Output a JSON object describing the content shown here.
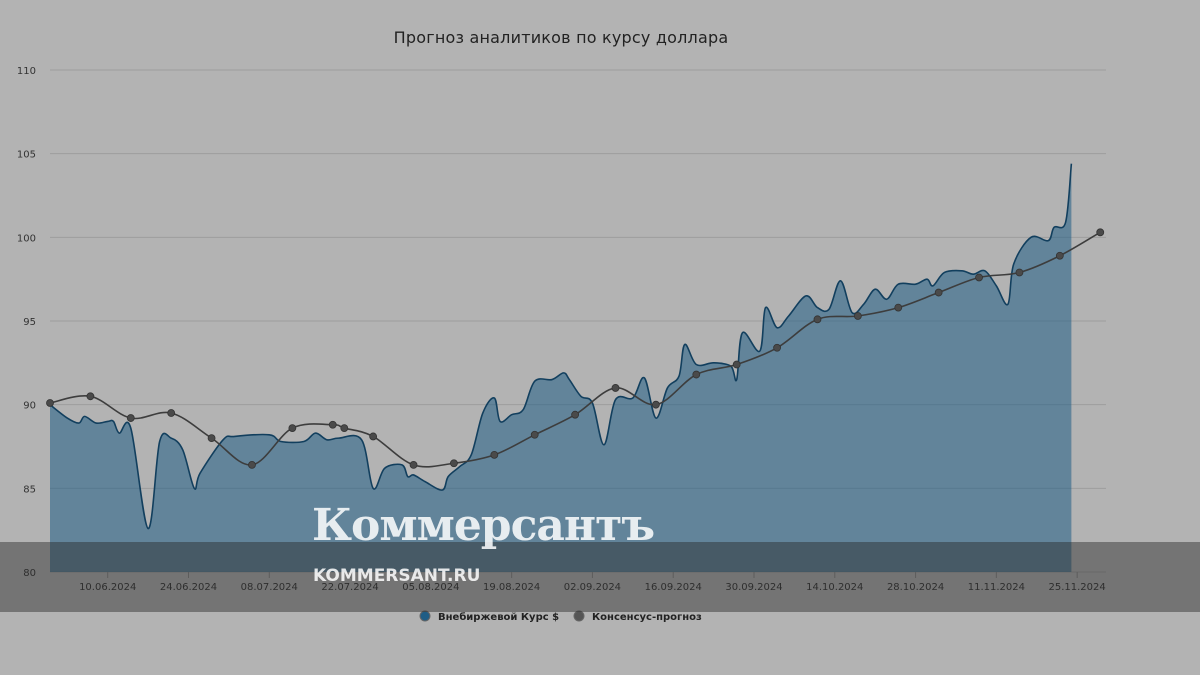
{
  "chart_data": {
    "type": "area",
    "title": "Прогноз аналитиков по курсу доллара",
    "xlabel": "",
    "ylabel": "",
    "ylim": [
      80,
      110
    ],
    "yticks": [
      "80",
      "85",
      "90",
      "95",
      "100",
      "105",
      "110"
    ],
    "x_tick_labels": [
      "10.06.2024",
      "24.06.2024",
      "08.07.2024",
      "22.07.2024",
      "05.08.2024",
      "19.08.2024",
      "02.09.2024",
      "16.09.2024",
      "30.09.2024",
      "14.10.2024",
      "28.10.2024",
      "11.11.2024",
      "25.11.2024"
    ],
    "grid": true,
    "legend_position": "bottom",
    "series": [
      {
        "name": "Внебиржевой Курс $",
        "type": "area",
        "color": "#1f5d85",
        "points": [
          [
            "2024-05-31",
            90.0
          ],
          [
            "2024-06-03",
            89.2
          ],
          [
            "2024-06-05",
            88.9
          ],
          [
            "2024-06-06",
            89.3
          ],
          [
            "2024-06-08",
            88.9
          ],
          [
            "2024-06-10",
            89.0
          ],
          [
            "2024-06-11",
            89.0
          ],
          [
            "2024-06-12",
            88.3
          ],
          [
            "2024-06-14",
            88.6
          ],
          [
            "2024-06-17",
            82.6
          ],
          [
            "2024-06-19",
            87.8
          ],
          [
            "2024-06-21",
            88.0
          ],
          [
            "2024-06-23",
            87.3
          ],
          [
            "2024-06-25",
            85.0
          ],
          [
            "2024-06-26",
            85.9
          ],
          [
            "2024-06-30",
            87.9
          ],
          [
            "2024-07-02",
            88.1
          ],
          [
            "2024-07-08",
            88.2
          ],
          [
            "2024-07-10",
            87.8
          ],
          [
            "2024-07-14",
            87.8
          ],
          [
            "2024-07-16",
            88.3
          ],
          [
            "2024-07-18",
            87.9
          ],
          [
            "2024-07-20",
            88.0
          ],
          [
            "2024-07-24",
            87.9
          ],
          [
            "2024-07-26",
            85.0
          ],
          [
            "2024-07-28",
            86.2
          ],
          [
            "2024-07-31",
            86.4
          ],
          [
            "2024-08-01",
            85.7
          ],
          [
            "2024-08-02",
            85.8
          ],
          [
            "2024-08-04",
            85.4
          ],
          [
            "2024-08-07",
            84.9
          ],
          [
            "2024-08-08",
            85.7
          ],
          [
            "2024-08-10",
            86.3
          ],
          [
            "2024-08-12",
            87.0
          ],
          [
            "2024-08-14",
            89.5
          ],
          [
            "2024-08-16",
            90.4
          ],
          [
            "2024-08-17",
            89.0
          ],
          [
            "2024-08-19",
            89.4
          ],
          [
            "2024-08-21",
            89.7
          ],
          [
            "2024-08-23",
            91.4
          ],
          [
            "2024-08-26",
            91.5
          ],
          [
            "2024-08-28",
            91.9
          ],
          [
            "2024-08-29",
            91.5
          ],
          [
            "2024-08-31",
            90.5
          ],
          [
            "2024-09-02",
            90.1
          ],
          [
            "2024-09-04",
            87.6
          ],
          [
            "2024-09-06",
            90.3
          ],
          [
            "2024-09-09",
            90.4
          ],
          [
            "2024-09-11",
            91.6
          ],
          [
            "2024-09-13",
            89.2
          ],
          [
            "2024-09-15",
            91.0
          ],
          [
            "2024-09-17",
            91.7
          ],
          [
            "2024-09-18",
            93.6
          ],
          [
            "2024-09-20",
            92.4
          ],
          [
            "2024-09-23",
            92.5
          ],
          [
            "2024-09-26",
            92.3
          ],
          [
            "2024-09-27",
            91.5
          ],
          [
            "2024-09-28",
            94.3
          ],
          [
            "2024-10-01",
            93.2
          ],
          [
            "2024-10-02",
            95.8
          ],
          [
            "2024-10-04",
            94.6
          ],
          [
            "2024-10-06",
            95.3
          ],
          [
            "2024-10-09",
            96.5
          ],
          [
            "2024-10-11",
            95.8
          ],
          [
            "2024-10-13",
            95.7
          ],
          [
            "2024-10-15",
            97.4
          ],
          [
            "2024-10-17",
            95.5
          ],
          [
            "2024-10-19",
            96.0
          ],
          [
            "2024-10-21",
            96.9
          ],
          [
            "2024-10-23",
            96.3
          ],
          [
            "2024-10-25",
            97.2
          ],
          [
            "2024-10-28",
            97.2
          ],
          [
            "2024-10-30",
            97.5
          ],
          [
            "2024-10-31",
            97.1
          ],
          [
            "2024-11-02",
            97.9
          ],
          [
            "2024-11-05",
            98.0
          ],
          [
            "2024-11-07",
            97.8
          ],
          [
            "2024-11-09",
            98.0
          ],
          [
            "2024-11-11",
            97.1
          ],
          [
            "2024-11-13",
            96.0
          ],
          [
            "2024-11-14",
            98.4
          ],
          [
            "2024-11-17",
            100.0
          ],
          [
            "2024-11-20",
            99.8
          ],
          [
            "2024-11-21",
            100.6
          ],
          [
            "2024-11-23",
            100.9
          ],
          [
            "2024-11-24",
            104.4
          ]
        ]
      },
      {
        "name": "Консенсус-прогноз",
        "type": "line",
        "color": "#444444",
        "points": [
          [
            "2024-05-31",
            90.1
          ],
          [
            "2024-06-07",
            90.5
          ],
          [
            "2024-06-14",
            89.2
          ],
          [
            "2024-06-21",
            89.5
          ],
          [
            "2024-06-28",
            88.0
          ],
          [
            "2024-07-05",
            86.4
          ],
          [
            "2024-07-12",
            88.6
          ],
          [
            "2024-07-19",
            88.8
          ],
          [
            "2024-07-21",
            88.6
          ],
          [
            "2024-07-26",
            88.1
          ],
          [
            "2024-08-02",
            86.4
          ],
          [
            "2024-08-09",
            86.5
          ],
          [
            "2024-08-16",
            87.0
          ],
          [
            "2024-08-23",
            88.2
          ],
          [
            "2024-08-30",
            89.4
          ],
          [
            "2024-09-06",
            91.0
          ],
          [
            "2024-09-13",
            90.0
          ],
          [
            "2024-09-20",
            91.8
          ],
          [
            "2024-09-27",
            92.4
          ],
          [
            "2024-10-04",
            93.4
          ],
          [
            "2024-10-11",
            95.1
          ],
          [
            "2024-10-18",
            95.3
          ],
          [
            "2024-10-25",
            95.8
          ],
          [
            "2024-11-01",
            96.7
          ],
          [
            "2024-11-08",
            97.6
          ],
          [
            "2024-11-15",
            97.9
          ],
          [
            "2024-11-22",
            98.9
          ],
          [
            "2024-11-29",
            100.3
          ]
        ]
      }
    ]
  },
  "legend": {
    "item1": {
      "label": "Внебиржевой Курс $",
      "color": "#1f5d85"
    },
    "item2": {
      "label": "Консенсус-прогноз",
      "color": "#555555"
    }
  },
  "watermark": {
    "logo_text": "Коммерсантъ",
    "site_text": "KOMMERSANT.RU"
  }
}
